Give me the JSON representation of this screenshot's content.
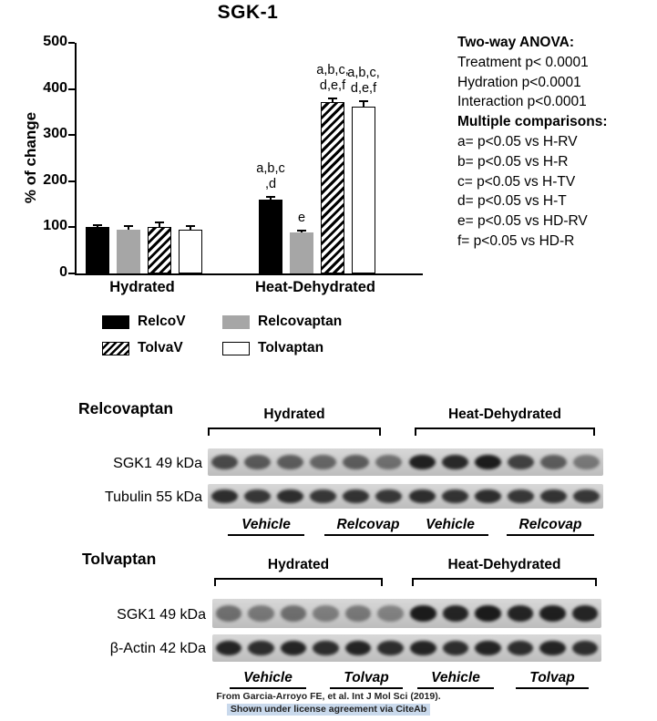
{
  "title": "SGK-1",
  "chart_data": {
    "type": "bar",
    "categories": [
      "Hydrated",
      "Heat-Dehydrated"
    ],
    "series": [
      {
        "name": "RelcoV",
        "style": "black",
        "values": [
          100,
          160
        ],
        "errors": [
          4,
          6
        ],
        "labels": [
          "",
          "a,b,c\n,d"
        ]
      },
      {
        "name": "Relcovaptan",
        "style": "gray",
        "values": [
          95,
          88
        ],
        "errors": [
          7,
          4
        ],
        "labels": [
          "",
          "e"
        ]
      },
      {
        "name": "TolvaV",
        "style": "hatched",
        "values": [
          101,
          371
        ],
        "errors": [
          10,
          9
        ],
        "labels": [
          "",
          "a,b,c,\nd,e,f"
        ]
      },
      {
        "name": "Tolvaptan",
        "style": "white",
        "values": [
          95,
          362
        ],
        "errors": [
          7,
          12
        ],
        "labels": [
          "",
          "a,b,c,\nd,e,f"
        ]
      }
    ],
    "title": "SGK-1",
    "xlabel": "",
    "ylabel": "% of change",
    "ylim": [
      0,
      500
    ],
    "yticks": [
      0,
      100,
      200,
      300,
      400,
      500
    ],
    "grid": false,
    "legend_position": "below"
  },
  "legend": [
    {
      "label": "RelcoV",
      "style": "black"
    },
    {
      "label": "Relcovaptan",
      "style": "gray"
    },
    {
      "label": "TolvaV",
      "style": "hatched"
    },
    {
      "label": "Tolvaptan",
      "style": "white"
    }
  ],
  "stats": {
    "anova_title": "Two-way  ANOVA:",
    "anova_lines": [
      "Treatment p< 0.0001",
      "Hydration p<0.0001",
      "Interaction p<0.0001"
    ],
    "comparisons_title": "Multiple comparisons:",
    "comparison_lines": [
      "a= p<0.05 vs H-RV",
      "b= p<0.05 vs H-R",
      "c= p<0.05 vs H-TV",
      "d= p<0.05 vs H-T",
      "e= p<0.05 vs HD-RV",
      "f= p<0.05 vs HD-R"
    ]
  },
  "blots": [
    {
      "heading": "Relcovaptan",
      "groups": [
        "Hydrated",
        "Heat-Dehydrated"
      ],
      "rows": [
        {
          "label": "SGK1 49 kDa",
          "bands": [
            0.7,
            0.62,
            0.6,
            0.55,
            0.6,
            0.5,
            0.92,
            0.88,
            0.95,
            0.75,
            0.6,
            0.45
          ]
        },
        {
          "label": "Tubulin 55 kDa",
          "bands": [
            0.85,
            0.8,
            0.85,
            0.8,
            0.82,
            0.8,
            0.85,
            0.82,
            0.85,
            0.8,
            0.82,
            0.8
          ]
        }
      ],
      "lanes": [
        "Vehicle",
        "Relcovap",
        "Vehicle",
        "Relcovap"
      ]
    },
    {
      "heading": "Tolvaptan",
      "groups": [
        "Hydrated",
        "Heat-Dehydrated"
      ],
      "rows": [
        {
          "label": "SGK1 49 kDa",
          "bands": [
            0.5,
            0.45,
            0.5,
            0.42,
            0.45,
            0.4,
            0.95,
            0.9,
            0.95,
            0.9,
            0.93,
            0.9
          ]
        },
        {
          "label": "β-Actin 42 kDa",
          "bands": [
            0.9,
            0.85,
            0.9,
            0.85,
            0.9,
            0.85,
            0.9,
            0.85,
            0.9,
            0.85,
            0.9,
            0.85
          ]
        }
      ],
      "lanes": [
        "Vehicle",
        "Tolvap",
        "Vehicle",
        "Tolvap"
      ]
    }
  ],
  "footer": {
    "line1": "From Garcia-Arroyo FE, et al. Int J Mol Sci (2019).",
    "line2": "Shown under license agreement via CiteAb"
  }
}
